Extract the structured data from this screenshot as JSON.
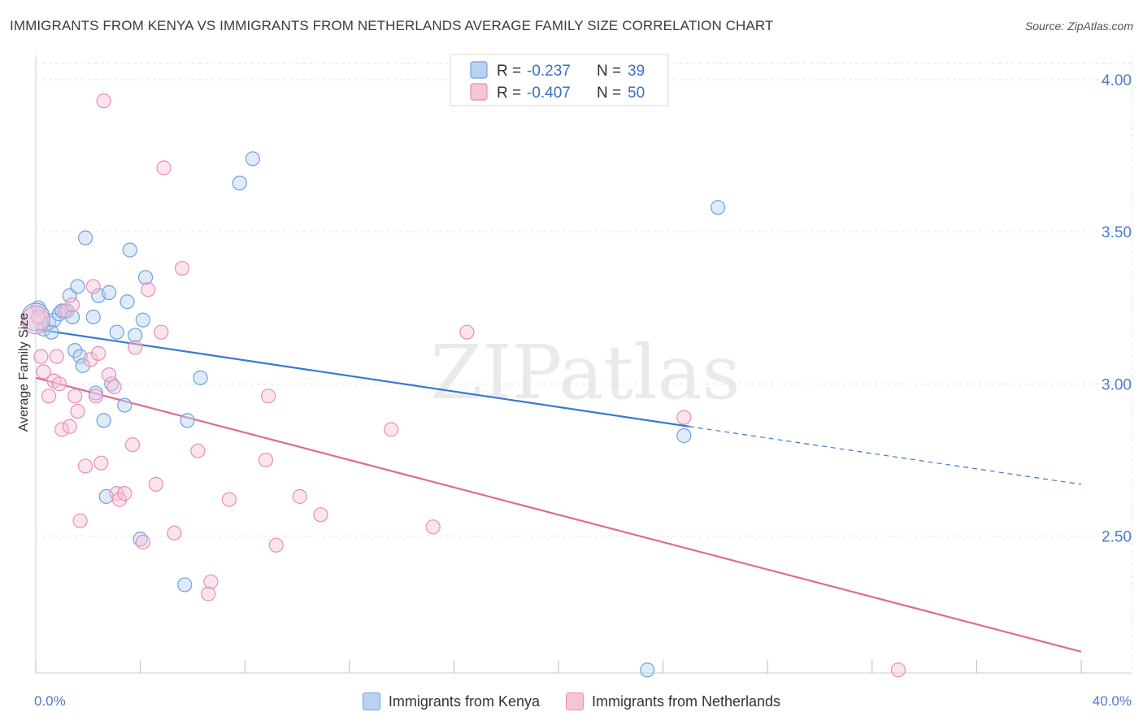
{
  "title": "IMMIGRANTS FROM KENYA VS IMMIGRANTS FROM NETHERLANDS AVERAGE FAMILY SIZE CORRELATION CHART",
  "source": "Source: ZipAtlas.com",
  "watermark": "ZIPatlas",
  "chart_data": {
    "type": "scatter",
    "ylabel": "Average Family Size",
    "xlim": [
      0,
      40
    ],
    "ylim": [
      2.05,
      4.08
    ],
    "x_tick_labels": [
      "0.0%",
      "40.0%"
    ],
    "y_ticks": [
      2.5,
      3.0,
      3.5,
      4.0
    ],
    "y_tick_labels": [
      "2.50",
      "3.00",
      "3.50",
      "4.00"
    ],
    "grid": true,
    "legend_top": [
      {
        "r_label": "R =",
        "r_value": "-0.237",
        "n_label": "N =",
        "n_value": "39"
      },
      {
        "r_label": "R =",
        "r_value": "-0.407",
        "n_label": "N =",
        "n_value": "50"
      }
    ],
    "series": [
      {
        "name": "Immigrants from Kenya",
        "color": "#6fa0df",
        "fill": "#b9d2f2",
        "line_color": "#3a78d0",
        "trend": {
          "x0": 0,
          "y0": 3.18,
          "x1": 25,
          "y1": 2.86,
          "dash_to_x": 40,
          "dash_to_y": 2.67
        },
        "points": [
          [
            0.1,
            3.25
          ],
          [
            0.3,
            3.18
          ],
          [
            0.5,
            3.2
          ],
          [
            0.6,
            3.17
          ],
          [
            0.7,
            3.21
          ],
          [
            0.9,
            3.23
          ],
          [
            1.0,
            3.24
          ],
          [
            1.2,
            3.24
          ],
          [
            1.3,
            3.29
          ],
          [
            1.4,
            3.22
          ],
          [
            1.5,
            3.11
          ],
          [
            1.6,
            3.32
          ],
          [
            1.7,
            3.09
          ],
          [
            1.8,
            3.06
          ],
          [
            1.9,
            3.48
          ],
          [
            2.2,
            3.22
          ],
          [
            2.3,
            2.97
          ],
          [
            2.4,
            3.29
          ],
          [
            2.6,
            2.88
          ],
          [
            2.7,
            2.63
          ],
          [
            2.8,
            3.3
          ],
          [
            2.9,
            3.0
          ],
          [
            3.1,
            3.17
          ],
          [
            3.4,
            2.93
          ],
          [
            3.5,
            3.27
          ],
          [
            3.6,
            3.44
          ],
          [
            3.8,
            3.16
          ],
          [
            4.0,
            2.49
          ],
          [
            4.1,
            3.21
          ],
          [
            4.2,
            3.35
          ],
          [
            5.7,
            2.34
          ],
          [
            5.8,
            2.88
          ],
          [
            6.3,
            3.02
          ],
          [
            7.8,
            3.66
          ],
          [
            8.3,
            3.74
          ],
          [
            23.4,
            2.06
          ],
          [
            24.8,
            2.83
          ],
          [
            26.1,
            3.58
          ],
          [
            0.0,
            3.22
          ]
        ]
      },
      {
        "name": "Immigrants from Netherlands",
        "color": "#e78fb0",
        "fill": "#f7c3d6",
        "line_color": "#e06a96",
        "trend": {
          "x0": 0,
          "y0": 3.02,
          "x1": 40,
          "y1": 2.12
        },
        "points": [
          [
            0.1,
            3.22
          ],
          [
            0.2,
            3.09
          ],
          [
            0.3,
            3.04
          ],
          [
            0.5,
            2.96
          ],
          [
            0.7,
            3.01
          ],
          [
            0.8,
            3.09
          ],
          [
            0.9,
            3.0
          ],
          [
            1.0,
            2.85
          ],
          [
            1.1,
            3.24
          ],
          [
            1.3,
            2.86
          ],
          [
            1.4,
            3.26
          ],
          [
            1.5,
            2.96
          ],
          [
            1.6,
            2.91
          ],
          [
            1.7,
            2.55
          ],
          [
            1.9,
            2.73
          ],
          [
            2.1,
            3.08
          ],
          [
            2.2,
            3.32
          ],
          [
            2.3,
            2.96
          ],
          [
            2.4,
            3.1
          ],
          [
            2.5,
            2.74
          ],
          [
            2.6,
            3.93
          ],
          [
            2.8,
            3.03
          ],
          [
            3.0,
            2.99
          ],
          [
            3.1,
            2.64
          ],
          [
            3.2,
            2.62
          ],
          [
            3.4,
            2.64
          ],
          [
            3.7,
            2.8
          ],
          [
            3.8,
            3.12
          ],
          [
            4.1,
            2.48
          ],
          [
            4.3,
            3.31
          ],
          [
            4.6,
            2.67
          ],
          [
            4.8,
            3.17
          ],
          [
            4.9,
            3.71
          ],
          [
            5.3,
            2.51
          ],
          [
            5.6,
            3.38
          ],
          [
            6.2,
            2.78
          ],
          [
            6.6,
            2.31
          ],
          [
            6.7,
            2.35
          ],
          [
            7.4,
            2.62
          ],
          [
            8.8,
            2.75
          ],
          [
            8.9,
            2.96
          ],
          [
            9.2,
            2.47
          ],
          [
            10.1,
            2.63
          ],
          [
            10.9,
            2.57
          ],
          [
            13.6,
            2.85
          ],
          [
            15.2,
            2.53
          ],
          [
            16.5,
            3.17
          ],
          [
            24.8,
            2.89
          ],
          [
            33.0,
            2.06
          ],
          [
            0.0,
            3.21
          ]
        ]
      }
    ]
  }
}
